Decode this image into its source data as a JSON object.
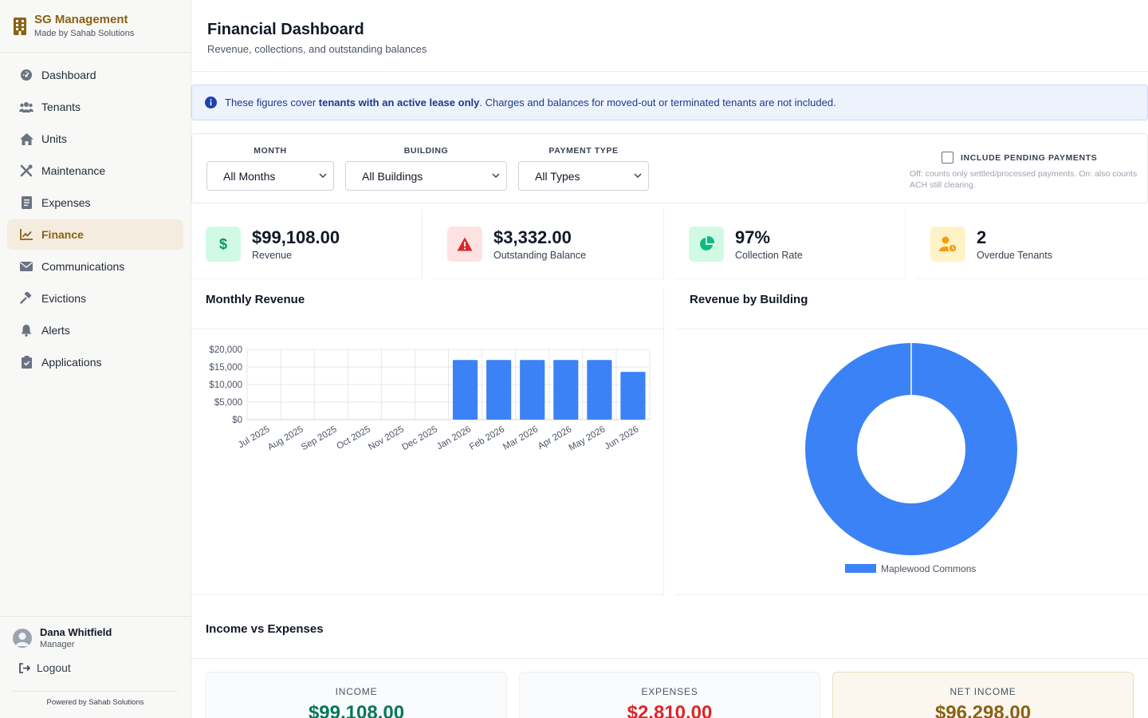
{
  "brand": {
    "title": "SG Management",
    "subtitle": "Made by Sahab Solutions"
  },
  "nav": [
    {
      "label": "Dashboard",
      "icon": "dashboard-icon",
      "active": false
    },
    {
      "label": "Tenants",
      "icon": "users-icon",
      "active": false
    },
    {
      "label": "Units",
      "icon": "home-icon",
      "active": false
    },
    {
      "label": "Maintenance",
      "icon": "tools-icon",
      "active": false
    },
    {
      "label": "Expenses",
      "icon": "receipt-icon",
      "active": false
    },
    {
      "label": "Finance",
      "icon": "chart-line-icon",
      "active": true
    },
    {
      "label": "Communications",
      "icon": "envelope-icon",
      "active": false
    },
    {
      "label": "Evictions",
      "icon": "gavel-icon",
      "active": false
    },
    {
      "label": "Alerts",
      "icon": "bell-icon",
      "active": false
    },
    {
      "label": "Applications",
      "icon": "clipboard-check-icon",
      "active": false
    }
  ],
  "user": {
    "name": "Dana Whitfield",
    "role": "Manager",
    "logout_label": "Logout",
    "powered": "Powered by Sahab Solutions"
  },
  "header": {
    "title": "Financial Dashboard",
    "subtitle": "Revenue, collections, and outstanding balances"
  },
  "notice": {
    "prefix": "These figures cover ",
    "emphasis": "tenants with an active lease only",
    "suffix": ". Charges and balances for moved-out or terminated tenants are not included."
  },
  "filters": {
    "month": {
      "label": "MONTH",
      "value": "All Months"
    },
    "building": {
      "label": "BUILDING",
      "value": "All Buildings"
    },
    "payment_type": {
      "label": "PAYMENT TYPE",
      "value": "All Types"
    },
    "pending": {
      "label": "INCLUDE PENDING PAYMENTS",
      "checked": false,
      "help": "Off: counts only settled/processed payments. On: also counts ACH still clearing."
    }
  },
  "kpis": [
    {
      "value": "$99,108.00",
      "label": "Revenue",
      "icon": "dollar-icon",
      "color": "#059669",
      "bg": "#d1fae5"
    },
    {
      "value": "$3,332.00",
      "label": "Outstanding Balance",
      "icon": "warning-icon",
      "color": "#dc2626",
      "bg": "#fee2e2"
    },
    {
      "value": "97%",
      "label": "Collection Rate",
      "icon": "pie-chart-icon",
      "color": "#10b981",
      "bg": "#d1fae5"
    },
    {
      "value": "2",
      "label": "Overdue Tenants",
      "icon": "user-clock-icon",
      "color": "#f59e0b",
      "bg": "#fef3c7"
    }
  ],
  "panels": {
    "monthly_revenue": "Monthly Revenue",
    "revenue_by_building": "Revenue by Building",
    "income_vs_expenses": "Income vs Expenses"
  },
  "chart_data": [
    {
      "type": "bar",
      "title": "Monthly Revenue",
      "categories": [
        "Jul 2025",
        "Aug 2025",
        "Sep 2025",
        "Oct 2025",
        "Nov 2025",
        "Dec 2025",
        "Jan 2026",
        "Feb 2026",
        "Mar 2026",
        "Apr 2026",
        "May 2026",
        "Jun 2026"
      ],
      "values": [
        0,
        0,
        0,
        0,
        0,
        0,
        17000,
        17000,
        17000,
        17000,
        17000,
        13600
      ],
      "ylim": [
        0,
        20000
      ],
      "yticks": [
        "$0",
        "$5,000",
        "$10,000",
        "$15,000",
        "$20,000"
      ],
      "ytick_values": [
        0,
        5000,
        10000,
        15000,
        20000
      ],
      "grid": true,
      "color": "#3b82f6"
    },
    {
      "type": "pie",
      "title": "Revenue by Building",
      "labels": [
        "Maplewood Commons"
      ],
      "values": [
        99108
      ],
      "colors": [
        "#3b82f6"
      ],
      "legend": "bottom"
    }
  ],
  "summary": [
    {
      "label": "INCOME",
      "value": "$99,108.00",
      "color": "#047857"
    },
    {
      "label": "EXPENSES",
      "value": "$2,810.00",
      "color": "#dc2626"
    },
    {
      "label": "NET INCOME",
      "value": "$96,298.00",
      "color": "#8a6216"
    }
  ]
}
